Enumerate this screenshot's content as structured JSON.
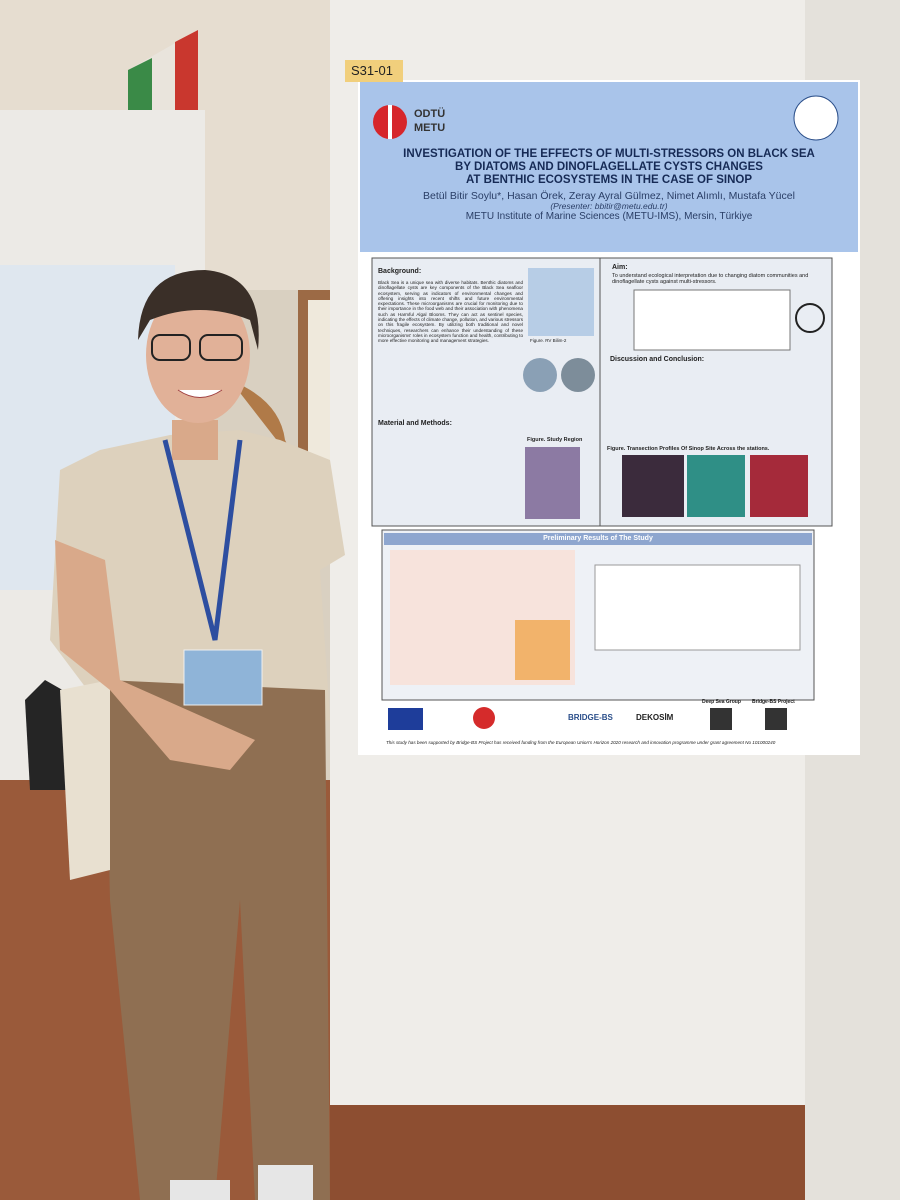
{
  "label": "S31-01",
  "poster": {
    "logo": [
      "ODTÜ",
      "METU"
    ],
    "title": [
      "INVESTIGATION OF THE EFFECTS OF MULTI-STRESSORS ON BLACK SEA",
      "BY DIATOMS AND DINOFLAGELLATE CYSTS CHANGES",
      "AT BENTHIC ECOSYSTEMS IN THE CASE OF SINOP"
    ],
    "authors": "Betül Bitir Soylu*, Hasan Örek, Zeray Ayral Gülmez, Nimet Alımlı, Mustafa Yücel",
    "presenter": "(Presenter: bbitir@metu.edu.tr)",
    "affiliation": "METU Institute of Marine Sciences (METU-IMS), Mersin, Türkiye",
    "background": {
      "heading": "Background:",
      "text": "Black Sea is a unique sea with diverse habitats. Benthic diatoms and dinoflagellate cysts are key components of the Black Sea seafloor ecosystem, serving as indicators of environmental changes and offering insights into recent shifts and future environmental expectations. These microorganisms are crucial for monitoring due to their importance in the food web and their association with phenomena such as Harmful Algal Blooms. They can act as sentinel species, indicating the effects of climate change, pollution, and various stressors on this fragile ecosystem. By utilizing both traditional and novel techniques, researchers can enhance their understanding of these microorganisms' roles in ecosystem function and health, contributing to more effective monitoring and management strategies."
    },
    "aim": {
      "heading": "Aim:",
      "text": "To understand ecological interpretation due to changing diatom communities and dinoflagellate cysts against multi-stressors."
    },
    "methods": {
      "heading": "Material and Methods:"
    },
    "discussion": {
      "heading": "Discussion and Conclusion:"
    },
    "figures": [
      "Figure. RV Bilim-2",
      "Figure. Study Region",
      "Figure. Transection Profiles Of Sinop Site Across the stations."
    ],
    "results_heading": "Preliminary Results of The Study",
    "partners": [
      "BRIDGE-BS",
      "DEKOSİM",
      "Deep Sea Group",
      "Bridge-BS Project"
    ],
    "funding": "This study has been supported by Bridge-BS Project has received funding from the European Union's Horizon 2020 research and innovation programme under grant agreement No 101000240"
  }
}
